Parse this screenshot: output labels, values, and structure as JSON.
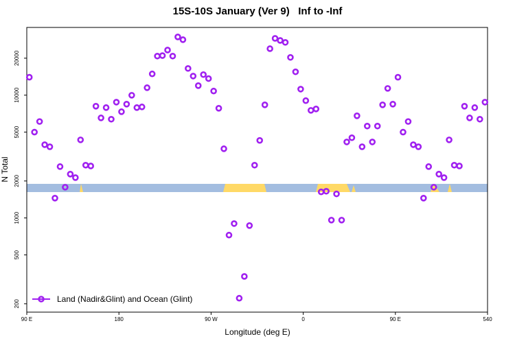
{
  "chart_data": {
    "type": "scatter",
    "title": "15S-10S January (Ver 9)   Inf to -Inf",
    "x_label": "Longitude (deg E)",
    "y_label": "N Total",
    "yscale": "log",
    "legend": "lower left",
    "xlim": [
      90,
      540
    ],
    "ylim": [
      171,
      35600
    ],
    "xticks": [
      {
        "value": 90,
        "label": "90 E"
      },
      180,
      {
        "value": 270,
        "label": "90 W"
      },
      {
        "value": 360,
        "label": "0"
      },
      {
        "value": 450,
        "label": "90 E"
      },
      540
    ],
    "yticks": [
      200,
      500,
      1000,
      2000,
      5000,
      10000,
      20000
    ],
    "x": [
      92.5,
      97.5,
      102.5,
      107.5,
      112.5,
      117.5,
      122.5,
      127.5,
      132.5,
      137.5,
      142.5,
      147.5,
      152.5,
      157.5,
      162.5,
      167.5,
      172.5,
      177.5,
      182.5,
      187.5,
      192.5,
      197.5,
      202.5,
      207.5,
      212.5,
      217.5,
      222.5,
      227.5,
      232.5,
      237.5,
      242.5,
      247.5,
      252.5,
      257.5,
      262.5,
      267.5,
      272.5,
      277.5,
      282.5,
      287.5,
      292.5,
      297.5,
      302.5,
      307.5,
      312.5,
      317.5,
      322.5,
      327.5,
      332.5,
      337.5,
      342.5,
      347.5,
      352.5,
      357.5,
      362.5,
      367.5,
      372.5,
      377.5,
      382.5,
      387.5,
      392.5,
      397.5,
      402.5,
      407.5,
      412.5,
      417.5,
      422.5,
      427.5,
      432.5,
      437.5,
      442.5,
      447.5,
      452.5,
      457.5,
      462.5,
      467.5,
      472.5,
      477.5,
      482.5,
      487.5,
      492.5,
      497.5,
      502.5,
      507.5,
      512.5,
      517.5,
      522.5,
      527.5,
      532.5,
      537.5
    ],
    "series": [
      {
        "name": "Land (Nadir&Glint) and Ocean (Glint)",
        "color": "#a020f0",
        "values": [
          14000,
          5000,
          6100,
          3950,
          3800,
          1450,
          2620,
          1780,
          2275,
          2130,
          4325,
          2690,
          2650,
          8130,
          6530,
          7920,
          6370,
          8770,
          7330,
          8450,
          9980,
          7920,
          8020,
          11500,
          14900,
          20800,
          21000,
          23300,
          20800,
          29800,
          28300,
          16500,
          14300,
          11960,
          14700,
          13650,
          10800,
          7820,
          3660,
          725,
          900,
          222,
          334,
          867,
          2690,
          4280,
          8340,
          23900,
          29000,
          27900,
          26900,
          20300,
          15500,
          11200,
          9020,
          7520,
          7720,
          1630,
          1650,
          960,
          1570,
          960,
          4160,
          4500,
          6790,
          3800,
          5600,
          4160,
          5600,
          8340,
          11350,
          8450,
          14000,
          5000,
          6100,
          3950,
          3800,
          1450,
          2620,
          1780,
          2275,
          2130,
          4325,
          2690,
          2650,
          8130,
          6530,
          7920,
          6370,
          8770
        ]
      }
    ]
  }
}
